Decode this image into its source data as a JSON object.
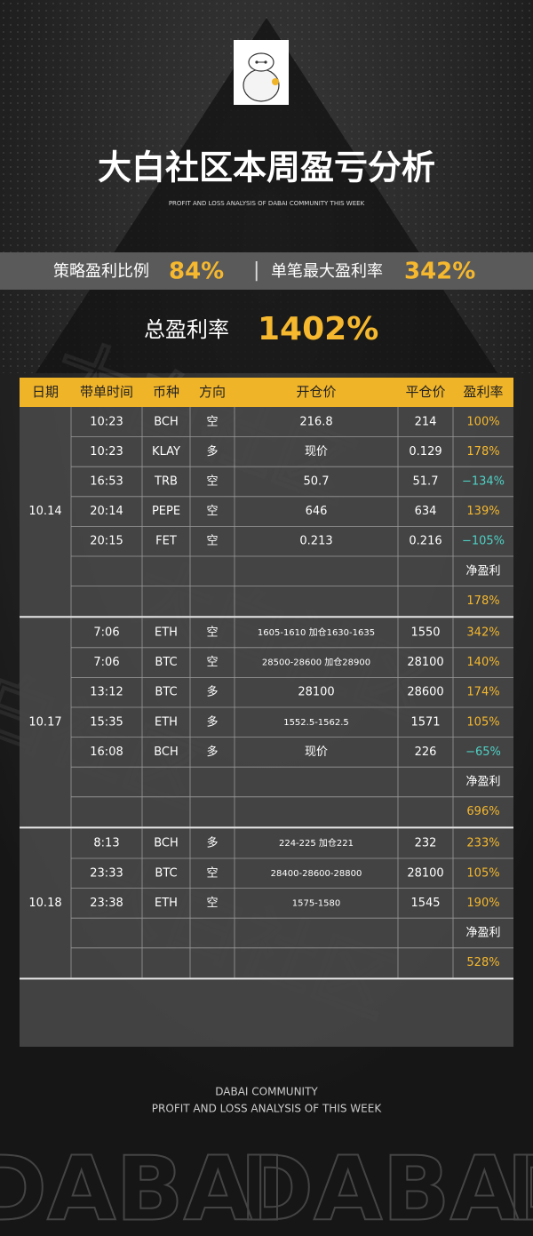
{
  "header": {
    "title": "大白社区本周盈亏分析",
    "subtitle": "PROFIT AND LOSS ANALYSIS OF DABAI COMMUNITY THIS WEEK"
  },
  "stats": {
    "ratio_label": "策略盈利比例",
    "ratio_value": "84%",
    "separator": "|",
    "max_label": "单笔最大盈利率",
    "max_value": "342%",
    "total_label": "总盈利率",
    "total_value": "1402%"
  },
  "table": {
    "header": [
      "日期",
      "带单时间",
      "币种",
      "方向",
      "开仓价",
      "平仓价",
      "盈利率"
    ],
    "groups": [
      {
        "date": "10.14",
        "rows": [
          [
            "10:23",
            "BCH",
            "空",
            "216.8",
            "214",
            "100%"
          ],
          [
            "10:23",
            "KLAY",
            "多",
            "现价",
            "0.129",
            "178%"
          ],
          [
            "16:53",
            "TRB",
            "空",
            "50.7",
            "51.7",
            "−134%"
          ],
          [
            "20:14",
            "PEPE",
            "空",
            "646",
            "634",
            "139%"
          ],
          [
            "20:15",
            "FET",
            "空",
            "0.213",
            "0.216",
            "−105%"
          ]
        ],
        "net_label": "净盈利",
        "net_value": "178%"
      },
      {
        "date": "10.17",
        "rows": [
          [
            "7:06",
            "ETH",
            "空",
            "1605-1610 加仓1630-1635",
            "1550",
            "342%"
          ],
          [
            "7:06",
            "BTC",
            "空",
            "28500-28600 加仓28900",
            "28100",
            "140%"
          ],
          [
            "13:12",
            "BTC",
            "多",
            "28100",
            "28600",
            "174%"
          ],
          [
            "15:35",
            "ETH",
            "多",
            "1552.5-1562.5",
            "1571",
            "105%"
          ],
          [
            "16:08",
            "BCH",
            "多",
            "现价",
            "226",
            "−65%"
          ]
        ],
        "net_label": "净盈利",
        "net_value": "696%"
      },
      {
        "date": "10.18",
        "rows": [
          [
            "8:13",
            "BCH",
            "多",
            "224-225 加仓221",
            "232",
            "233%"
          ],
          [
            "23:33",
            "BTC",
            "空",
            "28400-28600-28800",
            "28100",
            "105%"
          ],
          [
            "23:38",
            "ETH",
            "空",
            "1575-1580",
            "1545",
            "190%"
          ]
        ],
        "net_label": "净盈利",
        "net_value": "528%"
      }
    ]
  },
  "watermark": "大白社区",
  "footer": {
    "line1": "DABAI COMMUNITY",
    "line2": "PROFIT AND LOSS ANALYSIS OF THIS WEEK",
    "big": "DABAI"
  }
}
